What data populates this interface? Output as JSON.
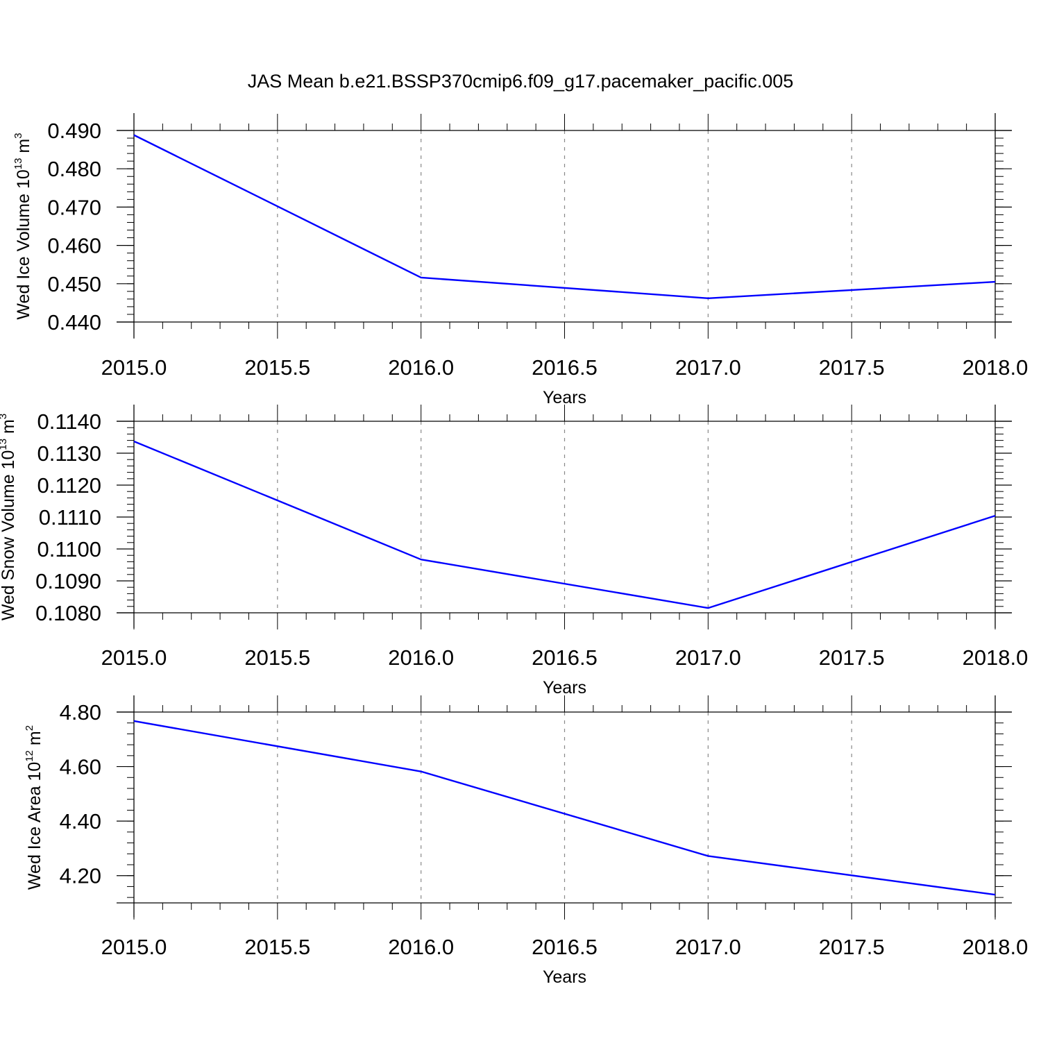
{
  "title": "JAS Mean b.e21.BSSP370cmip6.f09_g17.pacemaker_pacific.005",
  "colors": {
    "line": "#0000ff",
    "axis": "#000000",
    "grid": "#888888"
  },
  "chart_data": [
    {
      "type": "line",
      "xlabel": "Years",
      "ylabel": {
        "main": "Wed Ice Volume 10",
        "exp": "13",
        "unit": " m",
        "unit_exp": "3"
      },
      "xlim": [
        2015.0,
        2018.0
      ],
      "ylim": [
        0.44,
        0.49
      ],
      "xticks": [
        "2015.0",
        "2015.5",
        "2016.0",
        "2016.5",
        "2017.0",
        "2017.5",
        "2018.0"
      ],
      "yticks": [
        "0.440",
        "0.450",
        "0.460",
        "0.470",
        "0.480",
        "0.490"
      ],
      "ytick_values": [
        0.44,
        0.45,
        0.46,
        0.47,
        0.48,
        0.49
      ],
      "grid": "vertical dashed at major x ticks",
      "x": [
        2015,
        2016,
        2017,
        2018
      ],
      "values": [
        0.4888,
        0.4516,
        0.4462,
        0.4505
      ]
    },
    {
      "type": "line",
      "xlabel": "Years",
      "ylabel": {
        "main": "Wed Snow Volume 10",
        "exp": "13",
        "unit": " m",
        "unit_exp": "3"
      },
      "xlim": [
        2015.0,
        2018.0
      ],
      "ylim": [
        0.108,
        0.114
      ],
      "xticks": [
        "2015.0",
        "2015.5",
        "2016.0",
        "2016.5",
        "2017.0",
        "2017.5",
        "2018.0"
      ],
      "yticks": [
        "0.1080",
        "0.1090",
        "0.1100",
        "0.1110",
        "0.1120",
        "0.1130",
        "0.1140"
      ],
      "ytick_values": [
        0.108,
        0.109,
        0.11,
        0.111,
        0.112,
        0.113,
        0.114
      ],
      "grid": "vertical dashed at major x ticks",
      "x": [
        2015,
        2016,
        2017,
        2018
      ],
      "values": [
        0.11337,
        0.10967,
        0.10815,
        0.11104
      ]
    },
    {
      "type": "line",
      "xlabel": "Years",
      "ylabel": {
        "main": "Wed Ice Area 10",
        "exp": "12",
        "unit": " m",
        "unit_exp": "2"
      },
      "xlim": [
        2015.0,
        2018.0
      ],
      "ylim": [
        4.1,
        4.8
      ],
      "xticks": [
        "2015.0",
        "2015.5",
        "2016.0",
        "2016.5",
        "2017.0",
        "2017.5",
        "2018.0"
      ],
      "yticks": [
        "4.20",
        "4.40",
        "4.60",
        "4.80"
      ],
      "ytick_values": [
        4.2,
        4.4,
        4.6,
        4.8
      ],
      "grid": "vertical dashed at major x ticks",
      "x": [
        2015,
        2016,
        2017,
        2018
      ],
      "values": [
        4.767,
        4.582,
        4.272,
        4.13
      ]
    }
  ]
}
